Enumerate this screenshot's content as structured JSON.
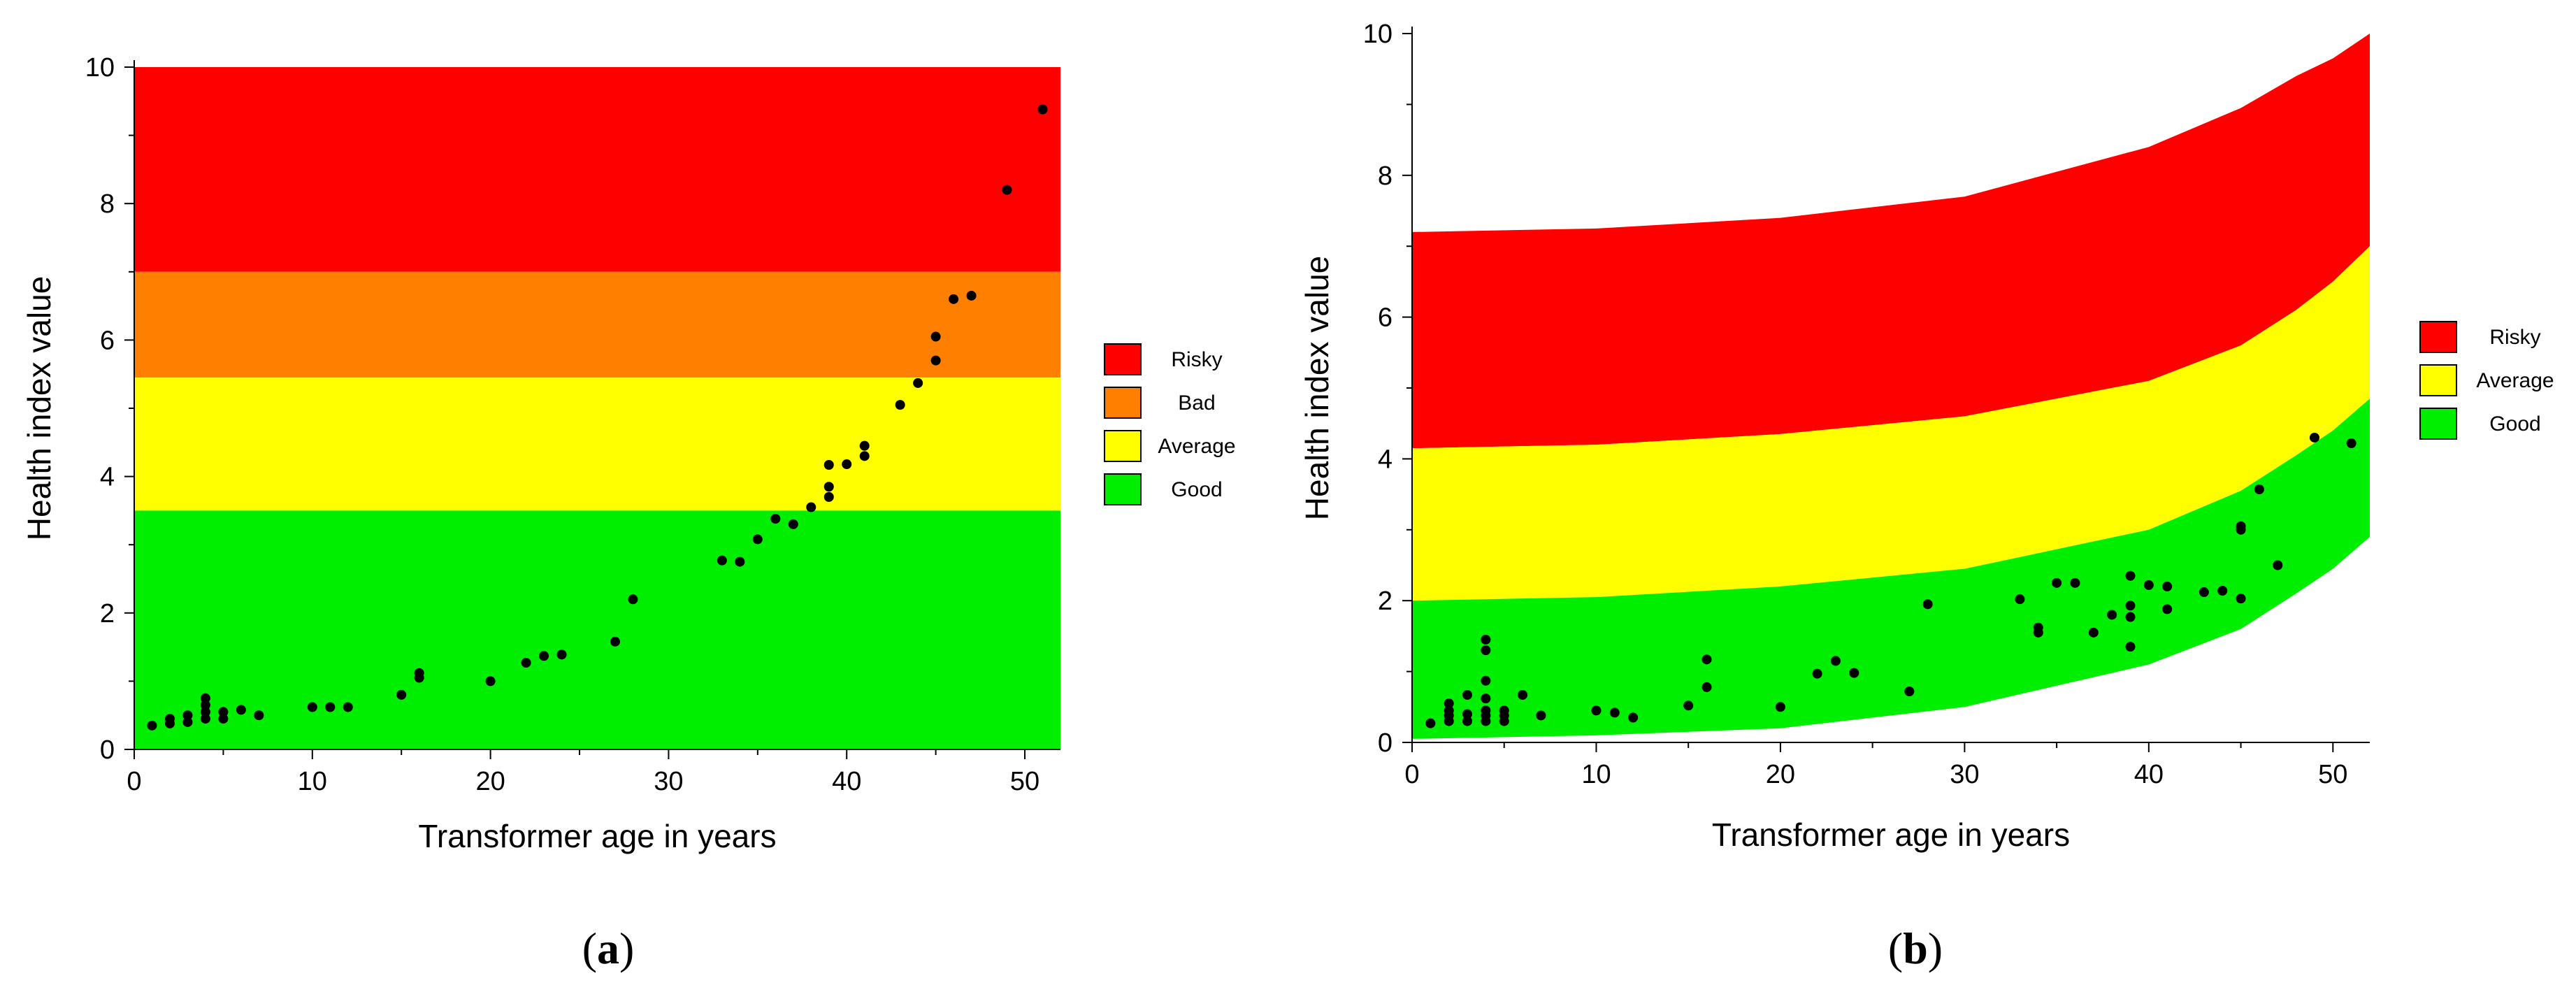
{
  "chart_data": [
    {
      "id": "a",
      "type": "scatter",
      "caption_open": "(",
      "caption_letter": "a",
      "caption_close": ")",
      "xlabel": "Transformer age in years",
      "ylabel": "Health index value",
      "xlim": [
        0,
        52
      ],
      "ylim": [
        0,
        10
      ],
      "xticks": [
        0,
        10,
        20,
        30,
        40,
        50
      ],
      "yticks": [
        0,
        2,
        4,
        6,
        8,
        10
      ],
      "bands": [
        {
          "label": "Risky",
          "color": "#ff0000",
          "from": 7,
          "to": 10
        },
        {
          "label": "Bad",
          "color": "#ff8000",
          "from": 5.45,
          "to": 7
        },
        {
          "label": "Average",
          "color": "#ffff00",
          "from": 3.5,
          "to": 5.45
        },
        {
          "label": "Good",
          "color": "#00ee00",
          "from": 0,
          "to": 3.5
        }
      ],
      "points": [
        [
          1,
          0.35
        ],
        [
          2,
          0.38
        ],
        [
          2,
          0.45
        ],
        [
          3,
          0.4
        ],
        [
          3,
          0.5
        ],
        [
          4,
          0.45
        ],
        [
          4,
          0.55
        ],
        [
          4,
          0.65
        ],
        [
          4,
          0.75
        ],
        [
          5,
          0.45
        ],
        [
          5,
          0.55
        ],
        [
          6,
          0.58
        ],
        [
          7,
          0.5
        ],
        [
          10,
          0.62
        ],
        [
          11,
          0.62
        ],
        [
          12,
          0.62
        ],
        [
          15,
          0.8
        ],
        [
          16,
          1.05
        ],
        [
          16,
          1.12
        ],
        [
          20,
          1.0
        ],
        [
          22,
          1.27
        ],
        [
          23,
          1.37
        ],
        [
          24,
          1.39
        ],
        [
          27,
          1.58
        ],
        [
          28,
          2.2
        ],
        [
          33,
          2.77
        ],
        [
          34,
          2.75
        ],
        [
          35,
          3.08
        ],
        [
          36,
          3.38
        ],
        [
          37,
          3.3
        ],
        [
          38,
          3.55
        ],
        [
          39,
          3.7
        ],
        [
          39,
          3.85
        ],
        [
          39,
          4.17
        ],
        [
          40,
          4.18
        ],
        [
          41,
          4.3
        ],
        [
          41,
          4.45
        ],
        [
          43,
          5.05
        ],
        [
          44,
          5.37
        ],
        [
          45,
          5.7
        ],
        [
          45,
          6.05
        ],
        [
          46,
          6.6
        ],
        [
          47,
          6.65
        ],
        [
          49,
          8.2
        ],
        [
          51,
          9.38
        ]
      ]
    },
    {
      "id": "b",
      "type": "scatter",
      "caption_open": "(",
      "caption_letter": "b",
      "caption_close": ")",
      "xlabel": "Transformer age in years",
      "ylabel": "Health index value",
      "xlim": [
        0,
        52
      ],
      "ylim": [
        0,
        10
      ],
      "xticks": [
        0,
        10,
        20,
        30,
        40,
        50
      ],
      "yticks": [
        0,
        2,
        4,
        6,
        8,
        10
      ],
      "bands": [
        {
          "label": "Risky",
          "color": "#ff0000",
          "lower": [
            [
              0,
              4.15
            ],
            [
              10,
              4.2
            ],
            [
              20,
              4.35
            ],
            [
              30,
              4.6
            ],
            [
              40,
              5.1
            ],
            [
              45,
              5.6
            ],
            [
              48,
              6.1
            ],
            [
              50,
              6.5
            ],
            [
              52,
              7.0
            ]
          ],
          "upper": [
            [
              0,
              7.2
            ],
            [
              10,
              7.25
            ],
            [
              20,
              7.4
            ],
            [
              30,
              7.7
            ],
            [
              40,
              8.4
            ],
            [
              45,
              8.95
            ],
            [
              48,
              9.4
            ],
            [
              50,
              9.65
            ],
            [
              52,
              10.0
            ]
          ]
        },
        {
          "label": "Average",
          "color": "#ffff00",
          "lower": [
            [
              0,
              2.0
            ],
            [
              10,
              2.05
            ],
            [
              20,
              2.2
            ],
            [
              30,
              2.45
            ],
            [
              40,
              3.0
            ],
            [
              45,
              3.55
            ],
            [
              48,
              4.05
            ],
            [
              50,
              4.4
            ],
            [
              52,
              4.85
            ]
          ],
          "upper": [
            [
              0,
              4.15
            ],
            [
              10,
              4.2
            ],
            [
              20,
              4.35
            ],
            [
              30,
              4.6
            ],
            [
              40,
              5.1
            ],
            [
              45,
              5.6
            ],
            [
              48,
              6.1
            ],
            [
              50,
              6.5
            ],
            [
              52,
              7.0
            ]
          ]
        },
        {
          "label": "Good",
          "color": "#00ee00",
          "lower": [
            [
              0,
              0.05
            ],
            [
              10,
              0.1
            ],
            [
              20,
              0.2
            ],
            [
              30,
              0.5
            ],
            [
              40,
              1.1
            ],
            [
              45,
              1.6
            ],
            [
              48,
              2.1
            ],
            [
              50,
              2.45
            ],
            [
              52,
              2.9
            ]
          ],
          "upper": [
            [
              0,
              2.0
            ],
            [
              10,
              2.05
            ],
            [
              20,
              2.2
            ],
            [
              30,
              2.45
            ],
            [
              40,
              3.0
            ],
            [
              45,
              3.55
            ],
            [
              48,
              4.05
            ],
            [
              50,
              4.4
            ],
            [
              52,
              4.85
            ]
          ]
        }
      ],
      "points": [
        [
          1,
          0.27
        ],
        [
          2,
          0.3
        ],
        [
          2,
          0.38
        ],
        [
          2,
          0.45
        ],
        [
          2,
          0.55
        ],
        [
          3,
          0.3
        ],
        [
          3,
          0.4
        ],
        [
          3,
          0.67
        ],
        [
          4,
          0.3
        ],
        [
          4,
          0.38
        ],
        [
          4,
          0.45
        ],
        [
          4,
          0.62
        ],
        [
          4,
          0.87
        ],
        [
          4,
          1.3
        ],
        [
          4,
          1.45
        ],
        [
          5,
          0.3
        ],
        [
          5,
          0.38
        ],
        [
          5,
          0.45
        ],
        [
          6,
          0.67
        ],
        [
          7,
          0.38
        ],
        [
          10,
          0.45
        ],
        [
          11,
          0.42
        ],
        [
          12,
          0.35
        ],
        [
          15,
          0.52
        ],
        [
          16,
          0.78
        ],
        [
          16,
          1.17
        ],
        [
          20,
          0.5
        ],
        [
          22,
          0.97
        ],
        [
          23,
          1.15
        ],
        [
          24,
          0.98
        ],
        [
          27,
          0.72
        ],
        [
          28,
          1.95
        ],
        [
          33,
          2.02
        ],
        [
          34,
          1.55
        ],
        [
          34,
          1.62
        ],
        [
          35,
          2.25
        ],
        [
          36,
          2.25
        ],
        [
          37,
          1.55
        ],
        [
          38,
          1.8
        ],
        [
          39,
          1.35
        ],
        [
          39,
          1.77
        ],
        [
          39,
          1.93
        ],
        [
          39,
          2.35
        ],
        [
          40,
          2.22
        ],
        [
          41,
          1.88
        ],
        [
          41,
          2.2
        ],
        [
          43,
          2.12
        ],
        [
          44,
          2.14
        ],
        [
          45,
          2.03
        ],
        [
          45,
          3.0
        ],
        [
          45,
          3.05
        ],
        [
          46,
          3.57
        ],
        [
          47,
          2.5
        ],
        [
          49,
          4.3
        ],
        [
          51,
          4.22
        ]
      ]
    }
  ]
}
